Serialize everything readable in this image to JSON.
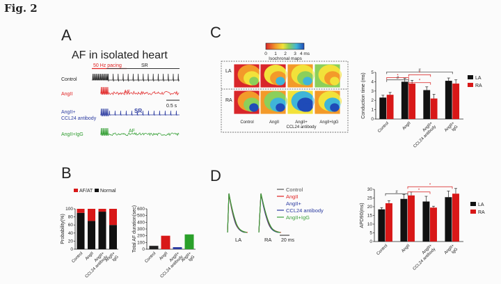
{
  "figure": {
    "label": "Fig. 2"
  },
  "panelA": {
    "letter": "A",
    "title": "AF in isolated heart",
    "pacing_label": "50 Hz pacing",
    "sr_label": "SR",
    "scale_label": "0.5 s",
    "traces": [
      {
        "label": "Control",
        "color": "#222222",
        "annotation": ""
      },
      {
        "label": "AngII",
        "color": "#e02020",
        "annotation": "AF"
      },
      {
        "label_lines": [
          "AngII+",
          "CCL24 antibody"
        ],
        "color": "#2a3aa0",
        "annotation": "SR"
      },
      {
        "label": "AngII+IgG",
        "color": "#2a9a2a",
        "annotation": "AF"
      }
    ]
  },
  "panelB": {
    "letter": "B",
    "legend": [
      {
        "label": "AF/AT",
        "color": "#d81818"
      },
      {
        "label": "Normal",
        "color": "#111111"
      }
    ],
    "icons": [
      "stacked-bar-chart",
      "bar-chart"
    ]
  },
  "panelC": {
    "letter": "C",
    "colorbar_ticks": [
      "0",
      "1",
      "2",
      "3",
      "4 ms"
    ],
    "colorbar_title": "Isochronal maps",
    "row_labels": [
      "LA",
      "RA"
    ],
    "col_labels": [
      [
        "Control"
      ],
      [
        "AngII"
      ],
      [
        "AngII+",
        "CCL24 antibody"
      ],
      [
        "AngII+IgG"
      ]
    ],
    "colors": {
      "blue": "#1f4bb8",
      "cyan": "#3fb5d8",
      "green": "#8ccf5a",
      "yellow": "#f2e23a",
      "orange": "#f39a2a",
      "red": "#d8262a"
    }
  },
  "panelD": {
    "letter": "D",
    "legend": [
      {
        "label": "Control",
        "color": "#555555"
      },
      {
        "label": "AngII",
        "color": "#e02020"
      },
      {
        "label": "AngII+",
        "color": "#2a3aa0"
      },
      {
        "label": "CCL24 antibody",
        "color": "#2a3aa0"
      },
      {
        "label": "AngII+IgG",
        "color": "#3aa03a"
      }
    ],
    "trace_labels": [
      "LA",
      "RA"
    ],
    "scale_label": "20 ms"
  },
  "chart_data": [
    {
      "id": "B1",
      "type": "bar",
      "stacked": true,
      "ylabel": "Probability(%)",
      "ylim": [
        0,
        100
      ],
      "yticks": [
        "0",
        "20",
        "40",
        "60",
        "80",
        "100"
      ],
      "categories": [
        "Control",
        "AngII",
        "AngII+ CCL24 antibody",
        "AngII+ IgG"
      ],
      "tick_label_lines": [
        [
          "Control"
        ],
        [
          "AngII"
        ],
        [
          "AngII+",
          "CCL24 antibody"
        ],
        [
          "AngII+",
          "IgG"
        ]
      ],
      "series": [
        {
          "name": "Normal",
          "color": "#111111",
          "values": [
            90,
            70,
            93,
            60
          ]
        },
        {
          "name": "AF/AT",
          "color": "#d81818",
          "values": [
            10,
            30,
            7,
            40
          ]
        }
      ]
    },
    {
      "id": "B2",
      "type": "bar",
      "ylabel": "Total AF duration(sec)",
      "ylim": [
        0,
        600
      ],
      "yticks": [
        "0",
        "100",
        "200",
        "300",
        "400",
        "500",
        "600"
      ],
      "categories": [
        "Control",
        "AngII",
        "AngII+ CCL24 antibody",
        "AngII+ IgG"
      ],
      "tick_label_lines": [
        [
          "Control"
        ],
        [
          "AngII"
        ],
        [
          "AngII+",
          "CCL24 antibody"
        ],
        [
          "AngII+",
          "IgG"
        ]
      ],
      "values": [
        50,
        200,
        30,
        220
      ],
      "colors": [
        "#222222",
        "#d81818",
        "#2a3aa0",
        "#2aa02a"
      ]
    },
    {
      "id": "C",
      "type": "bar",
      "ylabel": "Conduction time (ms)",
      "ylim": [
        0,
        5
      ],
      "yticks": [
        "0",
        "1",
        "2",
        "3",
        "4",
        "5"
      ],
      "categories": [
        "Control",
        "AngII",
        "AngII+ CCL24 antibody",
        "AngII+ IgG"
      ],
      "tick_label_lines": [
        [
          "Control"
        ],
        [
          "AngII"
        ],
        [
          "AngII+",
          "CCL24 antibody"
        ],
        [
          "AngII+",
          "IgG"
        ]
      ],
      "series": [
        {
          "name": "LA",
          "color": "#111111",
          "values": [
            2.3,
            4.0,
            3.1,
            4.1
          ],
          "errors": [
            0.25,
            0.35,
            0.35,
            0.3
          ]
        },
        {
          "name": "RA",
          "color": "#d81818",
          "values": [
            2.6,
            3.8,
            2.2,
            3.8
          ],
          "errors": [
            0.25,
            0.35,
            0.45,
            0.4
          ]
        }
      ],
      "sig": [
        {
          "from": 0,
          "to": 3,
          "y": 5.05,
          "mark": "#",
          "color": "#333333"
        },
        {
          "from": 0,
          "to": 1,
          "y": 4.45,
          "mark": "*",
          "color": "#d81818"
        },
        {
          "from": 1,
          "to": 2,
          "y": 4.75,
          "mark": "*",
          "color": "#d81818"
        },
        {
          "from": 0,
          "to": 1,
          "y": 4.2,
          "mark": "#",
          "color": "#333333"
        },
        {
          "from": 1,
          "to": 2,
          "y": 3.9,
          "mark": "*",
          "color": "#d81818"
        }
      ]
    },
    {
      "id": "D",
      "type": "bar",
      "ylabel": "APD90(ms)",
      "ylim": [
        0,
        30
      ],
      "yticks": [
        "0",
        "5",
        "10",
        "15",
        "20",
        "25",
        "30"
      ],
      "categories": [
        "Control",
        "AngII",
        "AngII+ CCL24 antibody",
        "AngII+ IgG"
      ],
      "tick_label_lines": [
        [
          "Control"
        ],
        [
          "AngII"
        ],
        [
          "AngII+",
          "CCL24 antibody"
        ],
        [
          "AngII+",
          "IgG"
        ]
      ],
      "series": [
        {
          "name": "LA",
          "color": "#111111",
          "values": [
            18.5,
            24.5,
            23,
            25.5
          ],
          "errors": [
            1.0,
            2.5,
            3.0,
            3.5
          ]
        },
        {
          "name": "RA",
          "color": "#d81818",
          "values": [
            22,
            26.5,
            19.5,
            27.5
          ],
          "errors": [
            1.5,
            2.0,
            0.8,
            3.0
          ]
        }
      ],
      "sig": [
        {
          "from": 0,
          "to": 1,
          "y": 27.5,
          "mark": "#",
          "color": "#333333"
        },
        {
          "from": 1,
          "to": 2,
          "y": 28.5,
          "mark": "*",
          "color": "#d81818"
        },
        {
          "from": 1,
          "to": 3,
          "y": 31.5,
          "mark": "*",
          "color": "#d81818"
        }
      ]
    }
  ]
}
